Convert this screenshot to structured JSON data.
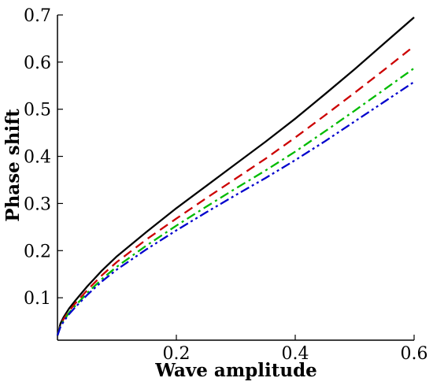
{
  "chart_data": {
    "type": "line",
    "title": "",
    "xlabel": "Wave amplitude",
    "ylabel": "Phase shift",
    "xlim": [
      0,
      0.6
    ],
    "ylim": [
      0.01,
      0.7
    ],
    "x_ticks": [
      "0.2",
      "0.4",
      "0.6"
    ],
    "x_tick_values": [
      0.2,
      0.4,
      0.6
    ],
    "y_ticks": [
      "0.1",
      "0.2",
      "0.3",
      "0.4",
      "0.5",
      "0.6",
      "0.7"
    ],
    "y_tick_values": [
      0.1,
      0.2,
      0.3,
      0.4,
      0.5,
      0.6,
      0.7
    ],
    "grid": false,
    "legend": "none",
    "x": [
      0.0,
      0.005,
      0.01,
      0.02,
      0.03,
      0.05,
      0.075,
      0.1,
      0.15,
      0.2,
      0.25,
      0.3,
      0.35,
      0.4,
      0.45,
      0.5,
      0.55,
      0.6
    ],
    "series": [
      {
        "color": "#000000",
        "dash": "solid",
        "values": [
          0.02,
          0.045,
          0.058,
          0.078,
          0.094,
          0.124,
          0.158,
          0.188,
          0.24,
          0.29,
          0.337,
          0.384,
          0.431,
          0.48,
          0.532,
          0.585,
          0.64,
          0.695
        ]
      },
      {
        "color": "#cc0000",
        "dash": "dashed",
        "values": [
          0.02,
          0.042,
          0.054,
          0.073,
          0.088,
          0.116,
          0.148,
          0.176,
          0.224,
          0.268,
          0.311,
          0.353,
          0.395,
          0.44,
          0.487,
          0.535,
          0.584,
          0.634
        ]
      },
      {
        "color": "#00bb00",
        "dash": "dashdot",
        "values": [
          0.02,
          0.04,
          0.051,
          0.069,
          0.083,
          0.11,
          0.14,
          0.166,
          0.211,
          0.253,
          0.293,
          0.332,
          0.37,
          0.41,
          0.453,
          0.497,
          0.542,
          0.587
        ]
      },
      {
        "color": "#0000cc",
        "dash": "dashdotdot",
        "values": [
          0.02,
          0.038,
          0.049,
          0.066,
          0.08,
          0.106,
          0.135,
          0.16,
          0.203,
          0.243,
          0.281,
          0.318,
          0.354,
          0.392,
          0.432,
          0.474,
          0.516,
          0.558
        ]
      }
    ]
  }
}
